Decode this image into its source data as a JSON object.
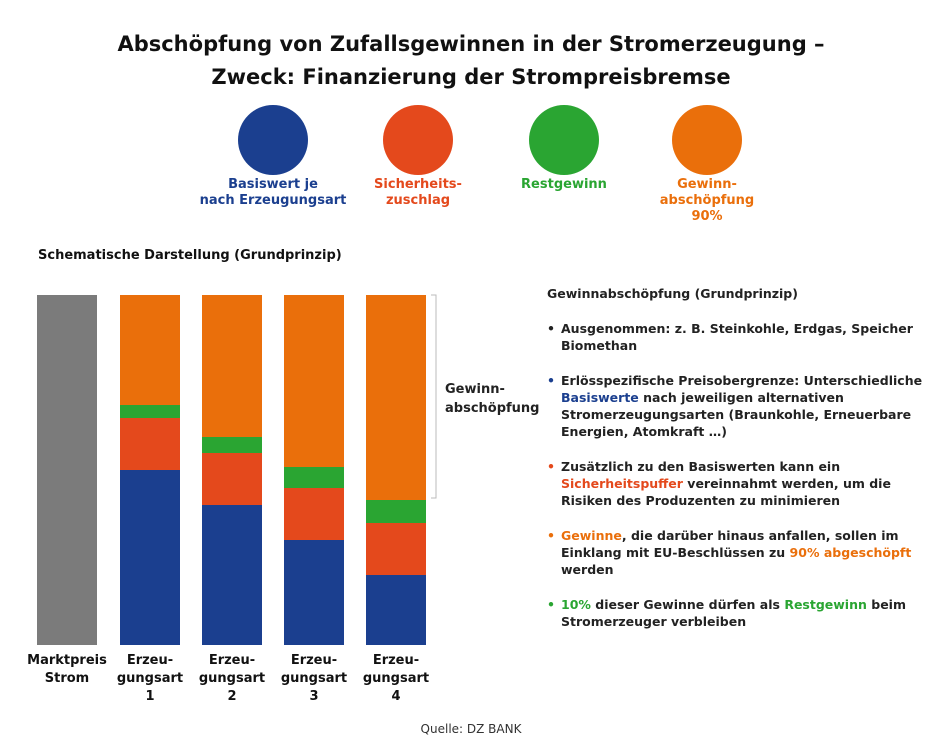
{
  "header": {
    "title": [
      "Abschöpfung von Zufallsgewinnen in der Stromerzeugung –",
      "Zweck: Finanzierung der Strompreisbremse"
    ]
  },
  "legend": [
    {
      "label": [
        "Basiswert je",
        "nach Erzeugungsart"
      ],
      "color": "#1b3f8f"
    },
    {
      "label": [
        "Sicherheits-",
        "zuschlag"
      ],
      "color": "#e4491c"
    },
    {
      "label": [
        "Restgewinn"
      ],
      "color": "#2aa532"
    },
    {
      "label": [
        "Gewinn-",
        "abschöpfung",
        "90%"
      ],
      "color": "#ea6f0b"
    }
  ],
  "subtitle": "Schematische Darstellung (Grundprinzip)",
  "columns": [
    {
      "label": [
        "Marktpreis",
        "Strom"
      ]
    },
    {
      "label": [
        "Erzeu-",
        "gungsart",
        "1"
      ]
    },
    {
      "label": [
        "Erzeu-",
        "gungsart",
        "2"
      ]
    },
    {
      "label": [
        "Erzeu-",
        "gungsart",
        "3"
      ]
    },
    {
      "label": [
        "Erzeu-",
        "gungsart",
        "4"
      ]
    }
  ],
  "bracket_label": [
    "Gewinn-",
    "abschöpfung"
  ],
  "notes": {
    "heading": "Gewinnabschöpfung (Grundprinzip)",
    "bullets": [
      {
        "color": "#222222",
        "parts": [
          {
            "text": "Ausgenommen: z. B. Steinkohle, Erdgas, Speicher Biomethan"
          }
        ]
      },
      {
        "color": "#1b3f8f",
        "parts": [
          {
            "text": "Erlösspezifische Preisobergrenze: Unterschiedliche "
          },
          {
            "text": "Basiswerte",
            "color": "#1b3f8f"
          },
          {
            "text": " nach jeweiligen alternativen Stromerzeugungsarten (Braunkohle, Erneuerbare Energien, Atomkraft …)"
          }
        ]
      },
      {
        "color": "#e4491c",
        "parts": [
          {
            "text": "Zusätzlich zu den Basiswerten kann ein "
          },
          {
            "text": "Sicherheitspuffer",
            "color": "#e4491c"
          },
          {
            "text": " vereinnahmt werden, um die Risiken des Produzenten zu minimieren"
          }
        ]
      },
      {
        "color": "#ea6f0b",
        "parts": [
          {
            "text": "Gewinne",
            "color": "#ea6f0b"
          },
          {
            "text": ", die darüber hinaus anfallen, sollen im Einklang mit EU-Beschlüssen zu "
          },
          {
            "text": "90% abgeschöpft",
            "color": "#ea6f0b"
          },
          {
            "text": " werden"
          }
        ]
      },
      {
        "color": "#2aa532",
        "parts": [
          {
            "text": "10%",
            "color": "#2aa532"
          },
          {
            "text": " dieser Gewinne dürfen als "
          },
          {
            "text": "Restgewinn",
            "color": "#2aa532"
          },
          {
            "text": " beim Stromerzeuger verbleiben"
          }
        ]
      }
    ]
  },
  "source": "Quelle: DZ BANK"
}
